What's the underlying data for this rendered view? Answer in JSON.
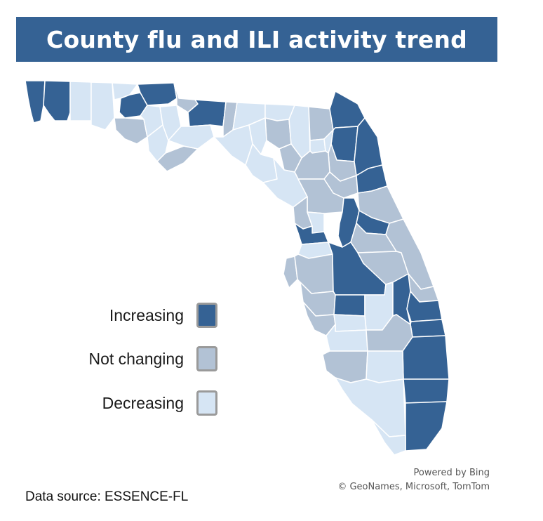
{
  "title": "County flu and ILI activity trend",
  "legend": {
    "items": [
      {
        "label": "Increasing",
        "color": "#356294"
      },
      {
        "label": "Not changing",
        "color": "#b2c2d5"
      },
      {
        "label": "Decreasing",
        "color": "#d6e5f4"
      }
    ]
  },
  "colors": {
    "increasing": "#356294",
    "not_changing": "#b2c2d5",
    "decreasing": "#d6e5f4",
    "border": "#ffffff",
    "banner": "#356294"
  },
  "attribution": {
    "line1": "Powered by Bing",
    "line2": "© GeoNames, Microsoft, TomTom"
  },
  "source": "Data source: ESSENCE-FL"
}
